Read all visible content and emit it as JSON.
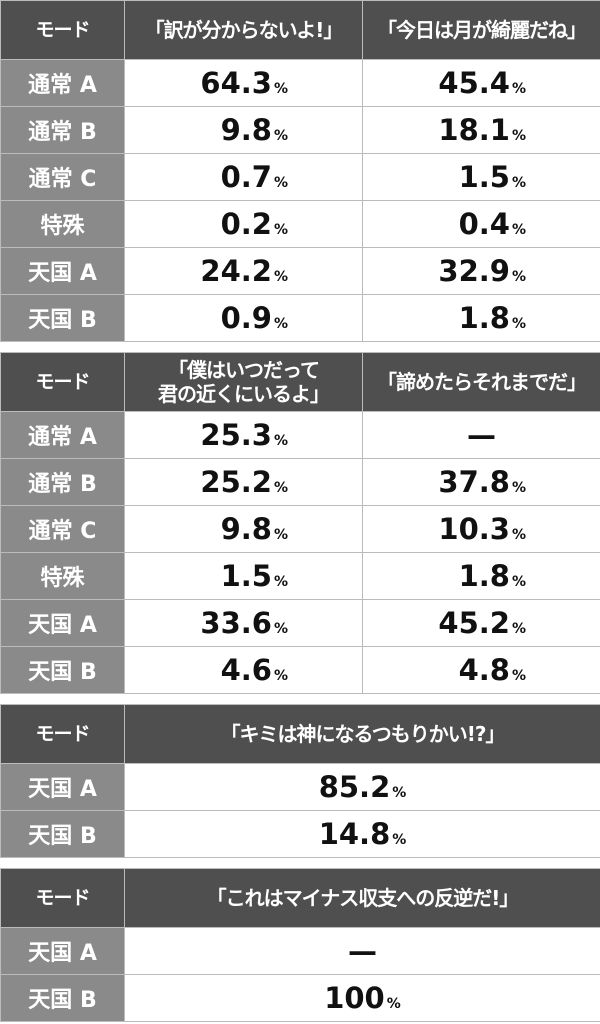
{
  "tables": [
    {
      "header": [
        "モード",
        "「訳が分からないよ!」",
        "「今日は月が綺麗だね」"
      ],
      "rows": [
        [
          "通常 A",
          {
            "num": "64.3",
            "unit": "%"
          },
          {
            "num": "45.4",
            "unit": "%"
          }
        ],
        [
          "通常 B",
          {
            "num": "9.8",
            "unit": "%"
          },
          {
            "num": "18.1",
            "unit": "%"
          }
        ],
        [
          "通常 C",
          {
            "num": "0.7",
            "unit": "%"
          },
          {
            "num": "1.5",
            "unit": "%"
          }
        ],
        [
          "特殊",
          {
            "num": "0.2",
            "unit": "%"
          },
          {
            "num": "0.4",
            "unit": "%"
          }
        ],
        [
          "天国 A",
          {
            "num": "24.2",
            "unit": "%"
          },
          {
            "num": "32.9",
            "unit": "%"
          }
        ],
        [
          "天国 B",
          {
            "num": "0.9",
            "unit": "%"
          },
          {
            "num": "1.8",
            "unit": "%"
          }
        ]
      ]
    },
    {
      "header": [
        "モード",
        "「僕はいつだって\n君の近くにいるよ」",
        "「諦めたらそれまでだ」"
      ],
      "rows": [
        [
          "通常 A",
          {
            "num": "25.3",
            "unit": "%"
          },
          "—"
        ],
        [
          "通常 B",
          {
            "num": "25.2",
            "unit": "%"
          },
          {
            "num": "37.8",
            "unit": "%"
          }
        ],
        [
          "通常 C",
          {
            "num": "9.8",
            "unit": "%"
          },
          {
            "num": "10.3",
            "unit": "%"
          }
        ],
        [
          "特殊",
          {
            "num": "1.5",
            "unit": "%"
          },
          {
            "num": "1.8",
            "unit": "%"
          }
        ],
        [
          "天国 A",
          {
            "num": "33.6",
            "unit": "%"
          },
          {
            "num": "45.2",
            "unit": "%"
          }
        ],
        [
          "天国 B",
          {
            "num": "4.6",
            "unit": "%"
          },
          {
            "num": "4.8",
            "unit": "%"
          }
        ]
      ]
    },
    {
      "header": [
        "モード",
        "「キミは神になるつもりかい!?」"
      ],
      "rows": [
        [
          "天国 A",
          {
            "num": "85.2",
            "unit": "%"
          }
        ],
        [
          "天国 B",
          {
            "num": "14.8",
            "unit": "%"
          }
        ]
      ]
    },
    {
      "header": [
        "モード",
        "「これはマイナス収支への反逆だ!」"
      ],
      "rows": [
        [
          "天国 A",
          "—"
        ],
        [
          "天国 B",
          {
            "num": "100",
            "unit": "%"
          }
        ]
      ]
    }
  ]
}
